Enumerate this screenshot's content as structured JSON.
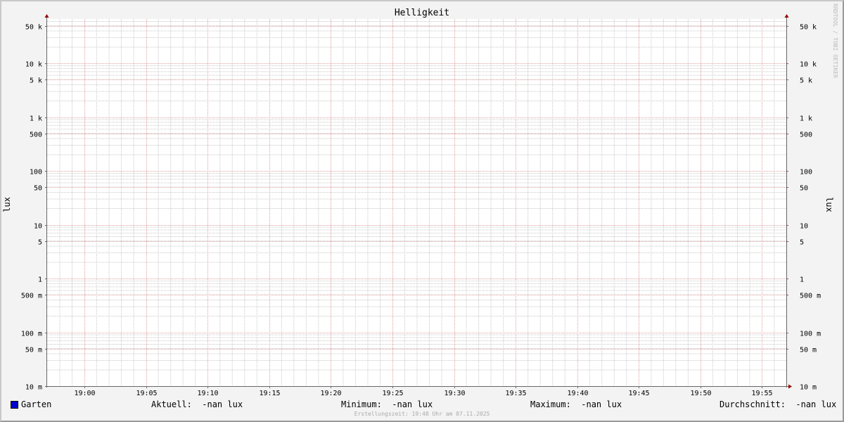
{
  "chart_data": {
    "type": "line",
    "title": "Helligkeit",
    "ylabel": "lux",
    "ylabel_right": "lux",
    "y_scale": "log",
    "ylim": [
      0.01,
      66000
    ],
    "y_ticks": [
      {
        "value": 50000,
        "label": "50 k"
      },
      {
        "value": 10000,
        "label": "10 k"
      },
      {
        "value": 5000,
        "label": "5 k"
      },
      {
        "value": 1000,
        "label": "1 k"
      },
      {
        "value": 500,
        "label": "500"
      },
      {
        "value": 100,
        "label": "100"
      },
      {
        "value": 50,
        "label": "50"
      },
      {
        "value": 10,
        "label": "10"
      },
      {
        "value": 5,
        "label": "5"
      },
      {
        "value": 1,
        "label": "1"
      },
      {
        "value": 0.5,
        "label": "500 m"
      },
      {
        "value": 0.1,
        "label": "100 m"
      },
      {
        "value": 0.05,
        "label": "50 m"
      },
      {
        "value": 0.01,
        "label": "10 m"
      }
    ],
    "xlim": [
      "18:57",
      "19:57"
    ],
    "x_ticks": [
      "19:00",
      "19:05",
      "19:10",
      "19:15",
      "19:20",
      "19:25",
      "19:30",
      "19:35",
      "19:40",
      "19:45",
      "19:50",
      "19:55"
    ],
    "grid": true,
    "series": [
      {
        "name": "Garten",
        "color": "#0000cc",
        "values": []
      }
    ]
  },
  "legend": {
    "series_name": "Garten",
    "current": "Aktuell:  -nan lux",
    "minimum": "Minimum:  -nan lux",
    "maximum": "Maximum:  -nan lux",
    "average": "Durchschnitt:  -nan lux"
  },
  "footer": "Erstellungszeit: 19:48 Uhr am 07.11.2025",
  "watermark": "RRDTOOL / TOBI OETIKER",
  "colors": {
    "major_grid": "#e0a0a0",
    "minor_grid": "#c8c8c8",
    "axis": "#666666",
    "arrow": "#990000"
  }
}
